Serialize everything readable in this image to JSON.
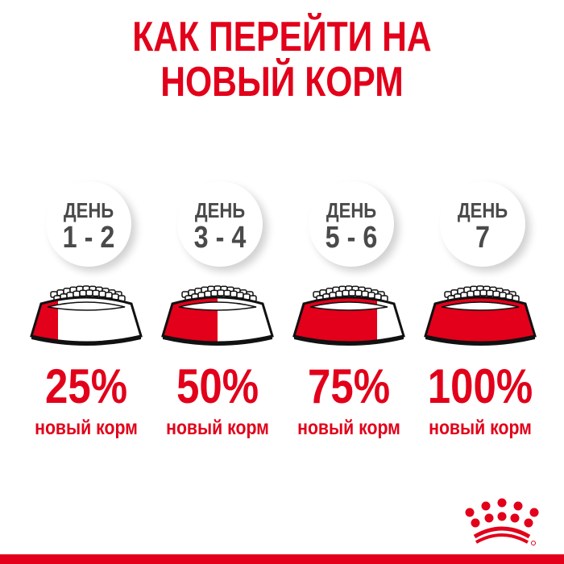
{
  "title": {
    "line1": "КАК ПЕРЕЙТИ НА",
    "line2": "НОВЫЙ КОРМ"
  },
  "colors": {
    "accent": "#e2001a",
    "text_gray": "#4a4a4a"
  },
  "steps": [
    {
      "day_label": "ДЕНЬ",
      "days": "1 - 2",
      "percent": "25%",
      "new_food_fraction": 0.25,
      "caption": "новый корм"
    },
    {
      "day_label": "ДЕНЬ",
      "days": "3 - 4",
      "percent": "50%",
      "new_food_fraction": 0.5,
      "caption": "новый корм"
    },
    {
      "day_label": "ДЕНЬ",
      "days": "5 - 6",
      "percent": "75%",
      "new_food_fraction": 0.75,
      "caption": "новый корм"
    },
    {
      "day_label": "ДЕНЬ",
      "days": "7",
      "percent": "100%",
      "new_food_fraction": 1.0,
      "caption": "новый корм"
    }
  ],
  "logo": {
    "name": "crown-logo"
  }
}
